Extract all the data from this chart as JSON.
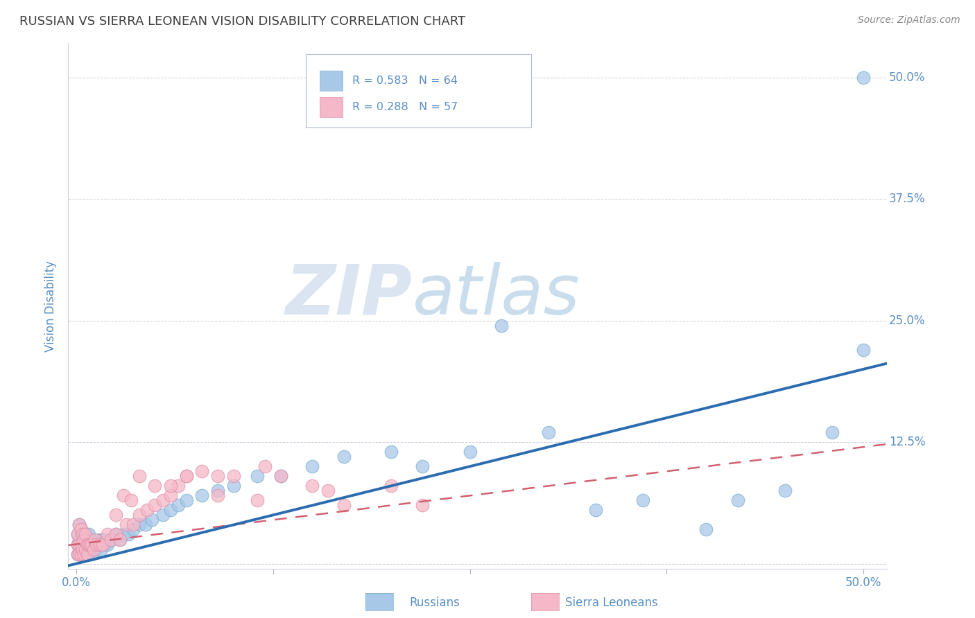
{
  "title": "RUSSIAN VS SIERRA LEONEAN VISION DISABILITY CORRELATION CHART",
  "source_text": "Source: ZipAtlas.com",
  "ylabel": "Vision Disability",
  "y_ticks": [
    0.0,
    0.125,
    0.25,
    0.375,
    0.5
  ],
  "y_tick_labels": [
    "",
    "12.5%",
    "25.0%",
    "37.5%",
    "50.0%"
  ],
  "x_ticks": [
    0.0,
    0.125,
    0.25,
    0.375,
    0.5
  ],
  "xlim": [
    -0.005,
    0.515
  ],
  "ylim": [
    -0.005,
    0.535
  ],
  "legend_r1": "R = 0.583",
  "legend_n1": "N = 64",
  "legend_r2": "R = 0.288",
  "legend_n2": "N = 57",
  "legend_label1": "Russians",
  "legend_label2": "Sierra Leoneans",
  "blue_color": "#a8c8e8",
  "blue_edge_color": "#7aaed0",
  "blue_line_color": "#2b6cb0",
  "pink_color": "#f5b8c8",
  "pink_edge_color": "#e090a8",
  "pink_line_color": "#d06070",
  "grid_color": "#ccccdd",
  "title_color": "#404040",
  "tick_color": "#5a8fc4",
  "source_color": "#888888",
  "watermark_color": "#d0dff0",
  "background_color": "#ffffff",
  "blue_line_start_y": 0.0,
  "blue_line_end_y": 0.2,
  "pink_line_start_y": 0.02,
  "pink_line_end_y": 0.12,
  "russians_x": [
    0.001,
    0.001,
    0.001,
    0.002,
    0.002,
    0.002,
    0.003,
    0.003,
    0.003,
    0.004,
    0.004,
    0.005,
    0.005,
    0.006,
    0.006,
    0.007,
    0.007,
    0.008,
    0.008,
    0.009,
    0.01,
    0.01,
    0.011,
    0.012,
    0.013,
    0.014,
    0.015,
    0.016,
    0.017,
    0.018,
    0.02,
    0.022,
    0.025,
    0.028,
    0.03,
    0.033,
    0.036,
    0.04,
    0.044,
    0.048,
    0.055,
    0.06,
    0.065,
    0.07,
    0.08,
    0.09,
    0.1,
    0.115,
    0.13,
    0.15,
    0.17,
    0.2,
    0.22,
    0.25,
    0.27,
    0.3,
    0.33,
    0.36,
    0.4,
    0.42,
    0.45,
    0.48,
    0.5,
    0.5
  ],
  "russians_y": [
    0.01,
    0.02,
    0.03,
    0.01,
    0.025,
    0.04,
    0.01,
    0.02,
    0.035,
    0.015,
    0.03,
    0.01,
    0.025,
    0.015,
    0.03,
    0.01,
    0.02,
    0.015,
    0.03,
    0.02,
    0.01,
    0.025,
    0.015,
    0.02,
    0.015,
    0.025,
    0.02,
    0.015,
    0.025,
    0.02,
    0.02,
    0.025,
    0.03,
    0.025,
    0.03,
    0.03,
    0.035,
    0.04,
    0.04,
    0.045,
    0.05,
    0.055,
    0.06,
    0.065,
    0.07,
    0.075,
    0.08,
    0.09,
    0.09,
    0.1,
    0.11,
    0.115,
    0.1,
    0.115,
    0.245,
    0.135,
    0.055,
    0.065,
    0.035,
    0.065,
    0.075,
    0.135,
    0.5,
    0.22
  ],
  "sierra_x": [
    0.001,
    0.001,
    0.001,
    0.002,
    0.002,
    0.002,
    0.003,
    0.003,
    0.003,
    0.004,
    0.004,
    0.005,
    0.005,
    0.006,
    0.006,
    0.007,
    0.007,
    0.008,
    0.009,
    0.01,
    0.011,
    0.012,
    0.013,
    0.015,
    0.017,
    0.02,
    0.022,
    0.025,
    0.028,
    0.032,
    0.036,
    0.04,
    0.045,
    0.05,
    0.055,
    0.06,
    0.065,
    0.07,
    0.08,
    0.09,
    0.1,
    0.115,
    0.13,
    0.15,
    0.17,
    0.2,
    0.22,
    0.025,
    0.03,
    0.035,
    0.04,
    0.05,
    0.06,
    0.07,
    0.09,
    0.12,
    0.16
  ],
  "sierra_y": [
    0.01,
    0.02,
    0.03,
    0.01,
    0.02,
    0.04,
    0.01,
    0.02,
    0.035,
    0.015,
    0.03,
    0.01,
    0.025,
    0.015,
    0.03,
    0.01,
    0.02,
    0.02,
    0.02,
    0.02,
    0.015,
    0.025,
    0.02,
    0.02,
    0.02,
    0.03,
    0.025,
    0.03,
    0.025,
    0.04,
    0.04,
    0.05,
    0.055,
    0.06,
    0.065,
    0.07,
    0.08,
    0.09,
    0.095,
    0.07,
    0.09,
    0.065,
    0.09,
    0.08,
    0.06,
    0.08,
    0.06,
    0.05,
    0.07,
    0.065,
    0.09,
    0.08,
    0.08,
    0.09,
    0.09,
    0.1,
    0.075
  ]
}
